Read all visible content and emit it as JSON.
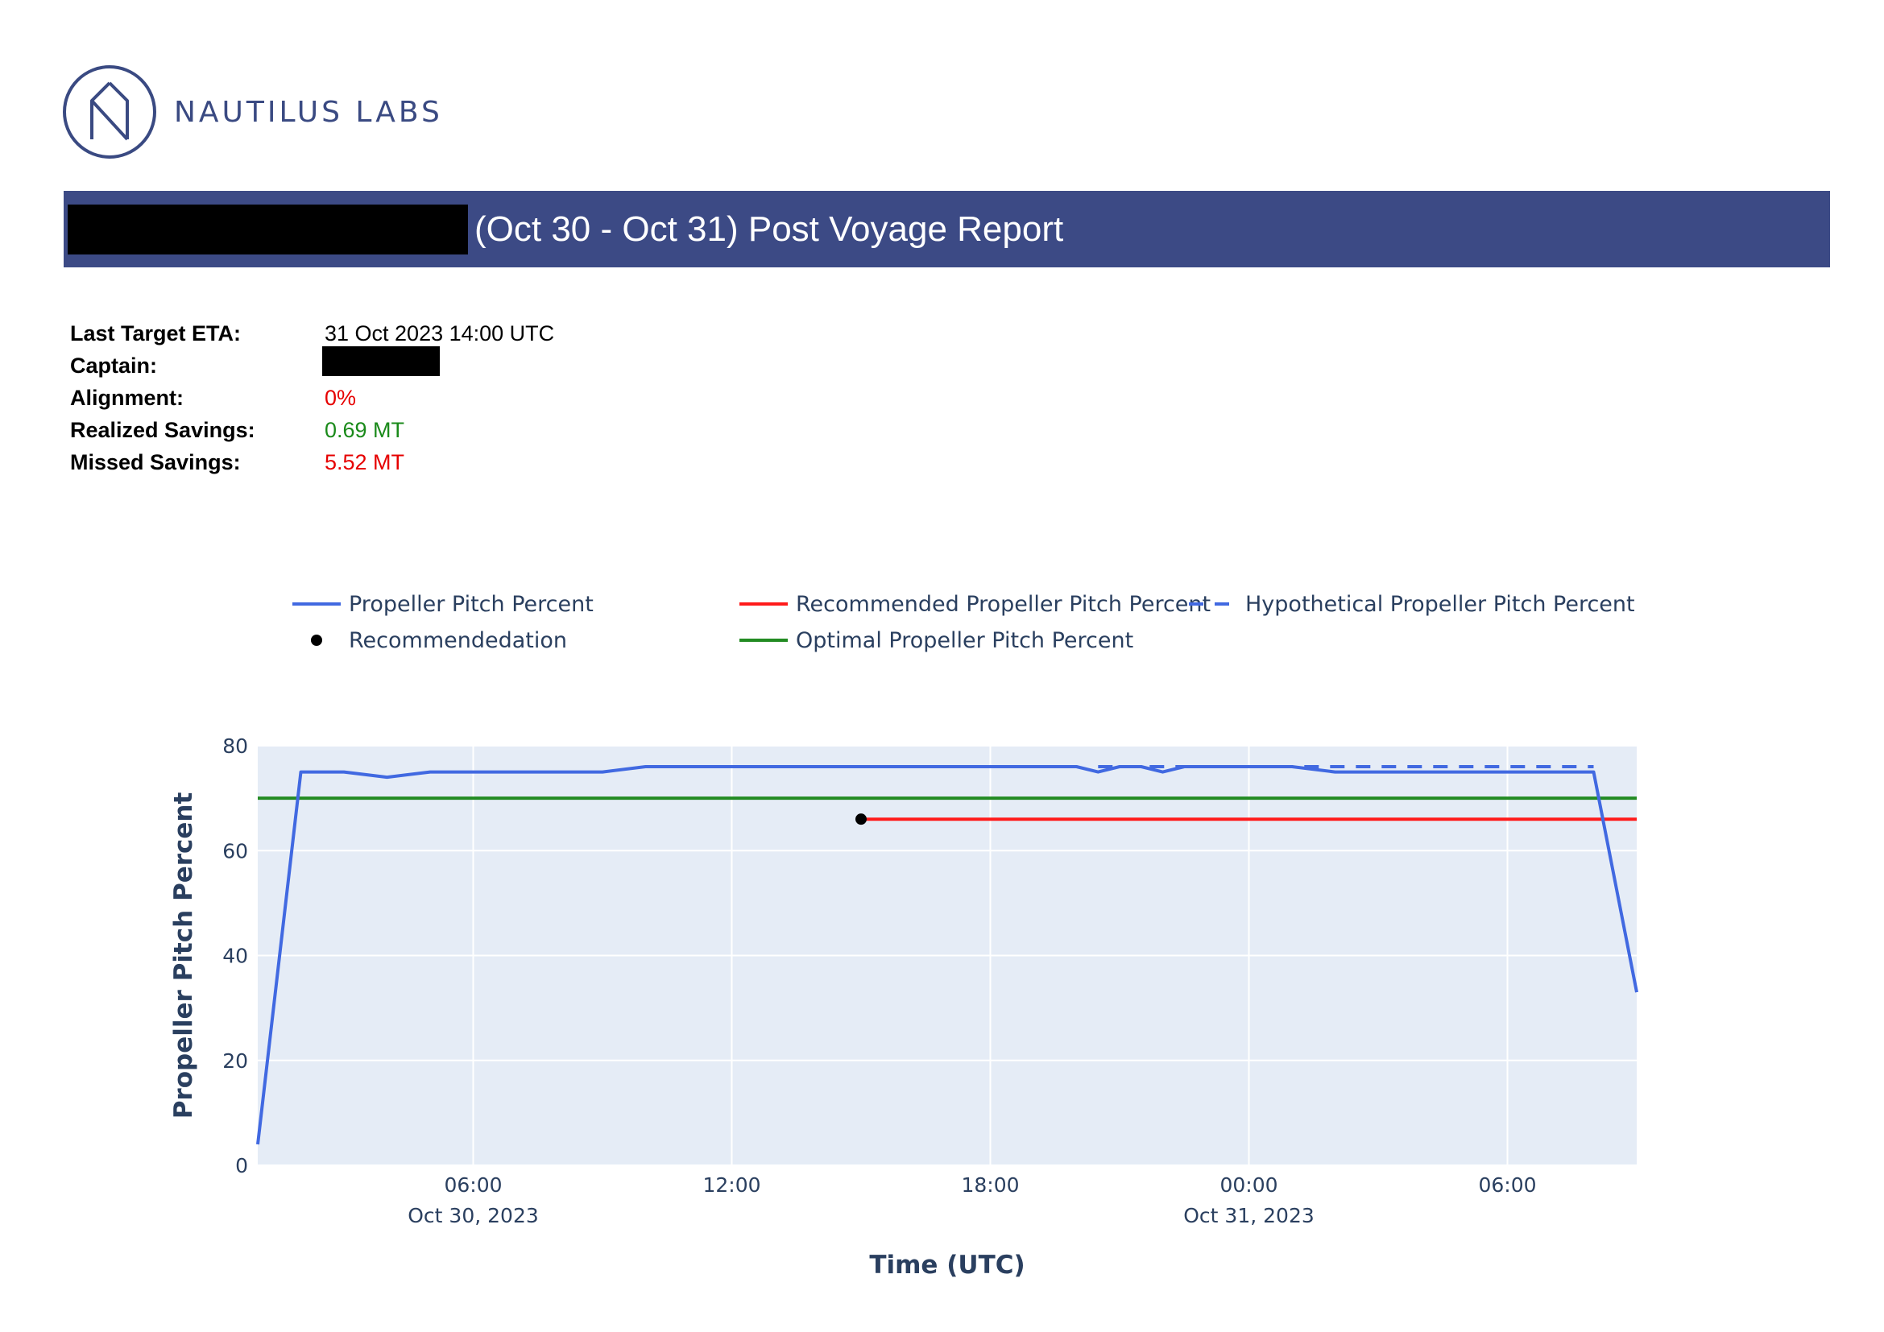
{
  "brand": {
    "name": "NAUTILUS LABS",
    "logo_icon": "nautilus-n-icon",
    "color": "#3a4a82"
  },
  "report": {
    "title": "(Oct 30 - Oct 31) Post Voyage Report",
    "banner_color": "#3c4a85"
  },
  "info": {
    "last_target_eta": {
      "label": "Last Target ETA:",
      "value": "31 Oct 2023 14:00 UTC"
    },
    "captain": {
      "label": "Captain:"
    },
    "alignment": {
      "label": "Alignment:",
      "value": "0%"
    },
    "realized_savings": {
      "label": "Realized Savings:",
      "value": "0.69 MT"
    },
    "missed_savings": {
      "label": "Missed Savings:",
      "value": "5.52 MT"
    }
  },
  "chart_data": {
    "type": "line",
    "xlabel": "Time (UTC)",
    "ylabel": "Propeller Pitch Percent",
    "ylim": [
      0,
      80
    ],
    "xlim": [
      "2023-10-30 01:00",
      "2023-10-31 09:00"
    ],
    "yticks": [
      0,
      20,
      40,
      60,
      80
    ],
    "xticks": [
      {
        "t": "2023-10-30 06:00",
        "label": "06:00",
        "sublabel": "Oct 30, 2023"
      },
      {
        "t": "2023-10-30 12:00",
        "label": "12:00",
        "sublabel": ""
      },
      {
        "t": "2023-10-30 18:00",
        "label": "18:00",
        "sublabel": ""
      },
      {
        "t": "2023-10-31 00:00",
        "label": "00:00",
        "sublabel": "Oct 31, 2023"
      },
      {
        "t": "2023-10-31 06:00",
        "label": "06:00",
        "sublabel": ""
      }
    ],
    "legend_placement": "top",
    "grid": true,
    "plot_bg": "#e5ecf6",
    "series": [
      {
        "name": "Propeller Pitch Percent",
        "style": "solid",
        "color": "#4169e1",
        "x": [
          "2023-10-30 01:00",
          "2023-10-30 02:00",
          "2023-10-30 03:00",
          "2023-10-30 04:00",
          "2023-10-30 05:00",
          "2023-10-30 09:00",
          "2023-10-30 10:00",
          "2023-10-30 20:00",
          "2023-10-30 20:30",
          "2023-10-30 21:00",
          "2023-10-30 21:30",
          "2023-10-30 22:00",
          "2023-10-30 22:30",
          "2023-10-30 23:00",
          "2023-10-31 00:00",
          "2023-10-31 01:00",
          "2023-10-31 02:00",
          "2023-10-31 08:00",
          "2023-10-31 09:00"
        ],
        "y": [
          4,
          75,
          75,
          74,
          75,
          75,
          76,
          76,
          75,
          76,
          76,
          75,
          76,
          76,
          76,
          76,
          75,
          75,
          33
        ]
      },
      {
        "name": "Hypothetical Propeller Pitch Percent",
        "style": "dash",
        "color": "#4169e1",
        "x": [
          "2023-10-30 20:30",
          "2023-10-31 08:00"
        ],
        "y": [
          76,
          76
        ]
      },
      {
        "name": "Recommended Propeller Pitch Percent",
        "style": "solid",
        "color": "#ff1a1a",
        "x": [
          "2023-10-30 15:00",
          "2023-10-31 09:00"
        ],
        "y": [
          66,
          66
        ]
      },
      {
        "name": "Optimal Propeller Pitch Percent",
        "style": "solid",
        "color": "#228b22",
        "x": [
          "2023-10-30 01:00",
          "2023-10-31 09:00"
        ],
        "y": [
          70,
          70
        ]
      },
      {
        "name": "Recommendedation",
        "style": "marker",
        "color": "#000000",
        "x": [
          "2023-10-30 15:00"
        ],
        "y": [
          66
        ]
      }
    ],
    "legend": [
      {
        "name": "Propeller Pitch Percent",
        "style": "solid",
        "color": "#4169e1"
      },
      {
        "name": "Recommended Propeller Pitch Percent",
        "style": "solid",
        "color": "#ff1a1a"
      },
      {
        "name": "Hypothetical Propeller Pitch Percent",
        "style": "dash",
        "color": "#4169e1"
      },
      {
        "name": "Recommendedation",
        "style": "marker",
        "color": "#000000"
      },
      {
        "name": "Optimal Propeller Pitch Percent",
        "style": "solid",
        "color": "#228b22"
      }
    ]
  }
}
